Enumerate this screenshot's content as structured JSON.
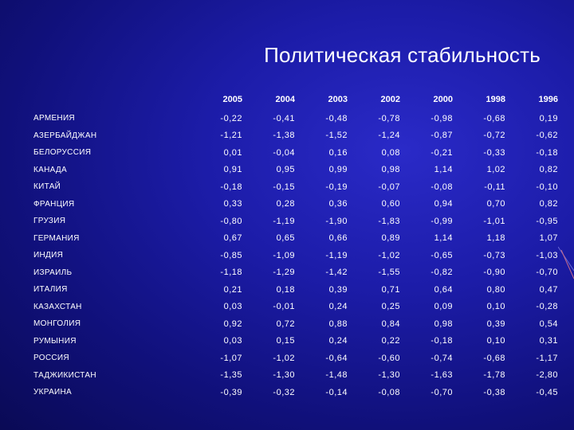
{
  "title": "Политическая стабильность",
  "table": {
    "headers": [
      "",
      "2005",
      "2004",
      "2003",
      "2002",
      "2000",
      "1998",
      "1996"
    ],
    "rows": [
      {
        "country": "АРМЕНИЯ",
        "values": [
          "-0,22",
          "-0,41",
          "-0,48",
          "-0,78",
          "-0,98",
          "-0,68",
          "0,19"
        ]
      },
      {
        "country": "АЗЕРБАЙДЖАН",
        "values": [
          "-1,21",
          "-1,38",
          "-1,52",
          "-1,24",
          "-0,87",
          "-0,72",
          "-0,62"
        ]
      },
      {
        "country": "БЕЛОРУССИЯ",
        "values": [
          "0,01",
          "-0,04",
          "0,16",
          "0,08",
          "-0,21",
          "-0,33",
          "-0,18"
        ]
      },
      {
        "country": "КАНАДА",
        "values": [
          "0,91",
          "0,95",
          "0,99",
          "0,98",
          "1,14",
          "1,02",
          "0,82"
        ]
      },
      {
        "country": "КИТАЙ",
        "values": [
          "-0,18",
          "-0,15",
          "-0,19",
          "-0,07",
          "-0,08",
          "-0,11",
          "-0,10"
        ]
      },
      {
        "country": "ФРАНЦИЯ",
        "values": [
          "0,33",
          "0,28",
          "0,36",
          "0,60",
          "0,94",
          "0,70",
          "0,82"
        ]
      },
      {
        "country": "ГРУЗИЯ",
        "values": [
          "-0,80",
          "-1,19",
          "-1,90",
          "-1,83",
          "-0,99",
          "-1,01",
          "-0,95"
        ]
      },
      {
        "country": "ГЕРМАНИЯ",
        "values": [
          "0,67",
          "0,65",
          "0,66",
          "0,89",
          "1,14",
          "1,18",
          "1,07"
        ]
      },
      {
        "country": "ИНДИЯ",
        "values": [
          "-0,85",
          "-1,09",
          "-1,19",
          "-1,02",
          "-0,65",
          "-0,73",
          "-1,03"
        ]
      },
      {
        "country": "ИЗРАИЛЬ",
        "values": [
          "-1,18",
          "-1,29",
          "-1,42",
          "-1,55",
          "-0,82",
          "-0,90",
          "-0,70"
        ]
      },
      {
        "country": "ИТАЛИЯ",
        "values": [
          "0,21",
          "0,18",
          "0,39",
          "0,71",
          "0,64",
          "0,80",
          "0,47"
        ]
      },
      {
        "country": "КАЗАХСТАН",
        "values": [
          "0,03",
          "-0,01",
          "0,24",
          "0,25",
          "0,09",
          "0,10",
          "-0,28"
        ]
      },
      {
        "country": "МОНГОЛИЯ",
        "values": [
          "0,92",
          "0,72",
          "0,88",
          "0,84",
          "0,98",
          "0,39",
          "0,54"
        ]
      },
      {
        "country": "РУМЫНИЯ",
        "values": [
          "0,03",
          "0,15",
          "0,24",
          "0,22",
          "-0,18",
          "0,10",
          "0,31"
        ]
      },
      {
        "country": "РОССИЯ",
        "values": [
          "-1,07",
          "-1,02",
          "-0,64",
          "-0,60",
          "-0,74",
          "-0,68",
          "-1,17"
        ]
      },
      {
        "country": "ТАДЖИКИСТАН",
        "values": [
          "-1,35",
          "-1,30",
          "-1,48",
          "-1,30",
          "-1,63",
          "-1,78",
          "-2,80"
        ]
      },
      {
        "country": "УКРАИНА",
        "values": [
          "-0,39",
          "-0,32",
          "-0,14",
          "-0,08",
          "-0,70",
          "-0,38",
          "-0,45"
        ]
      }
    ]
  }
}
